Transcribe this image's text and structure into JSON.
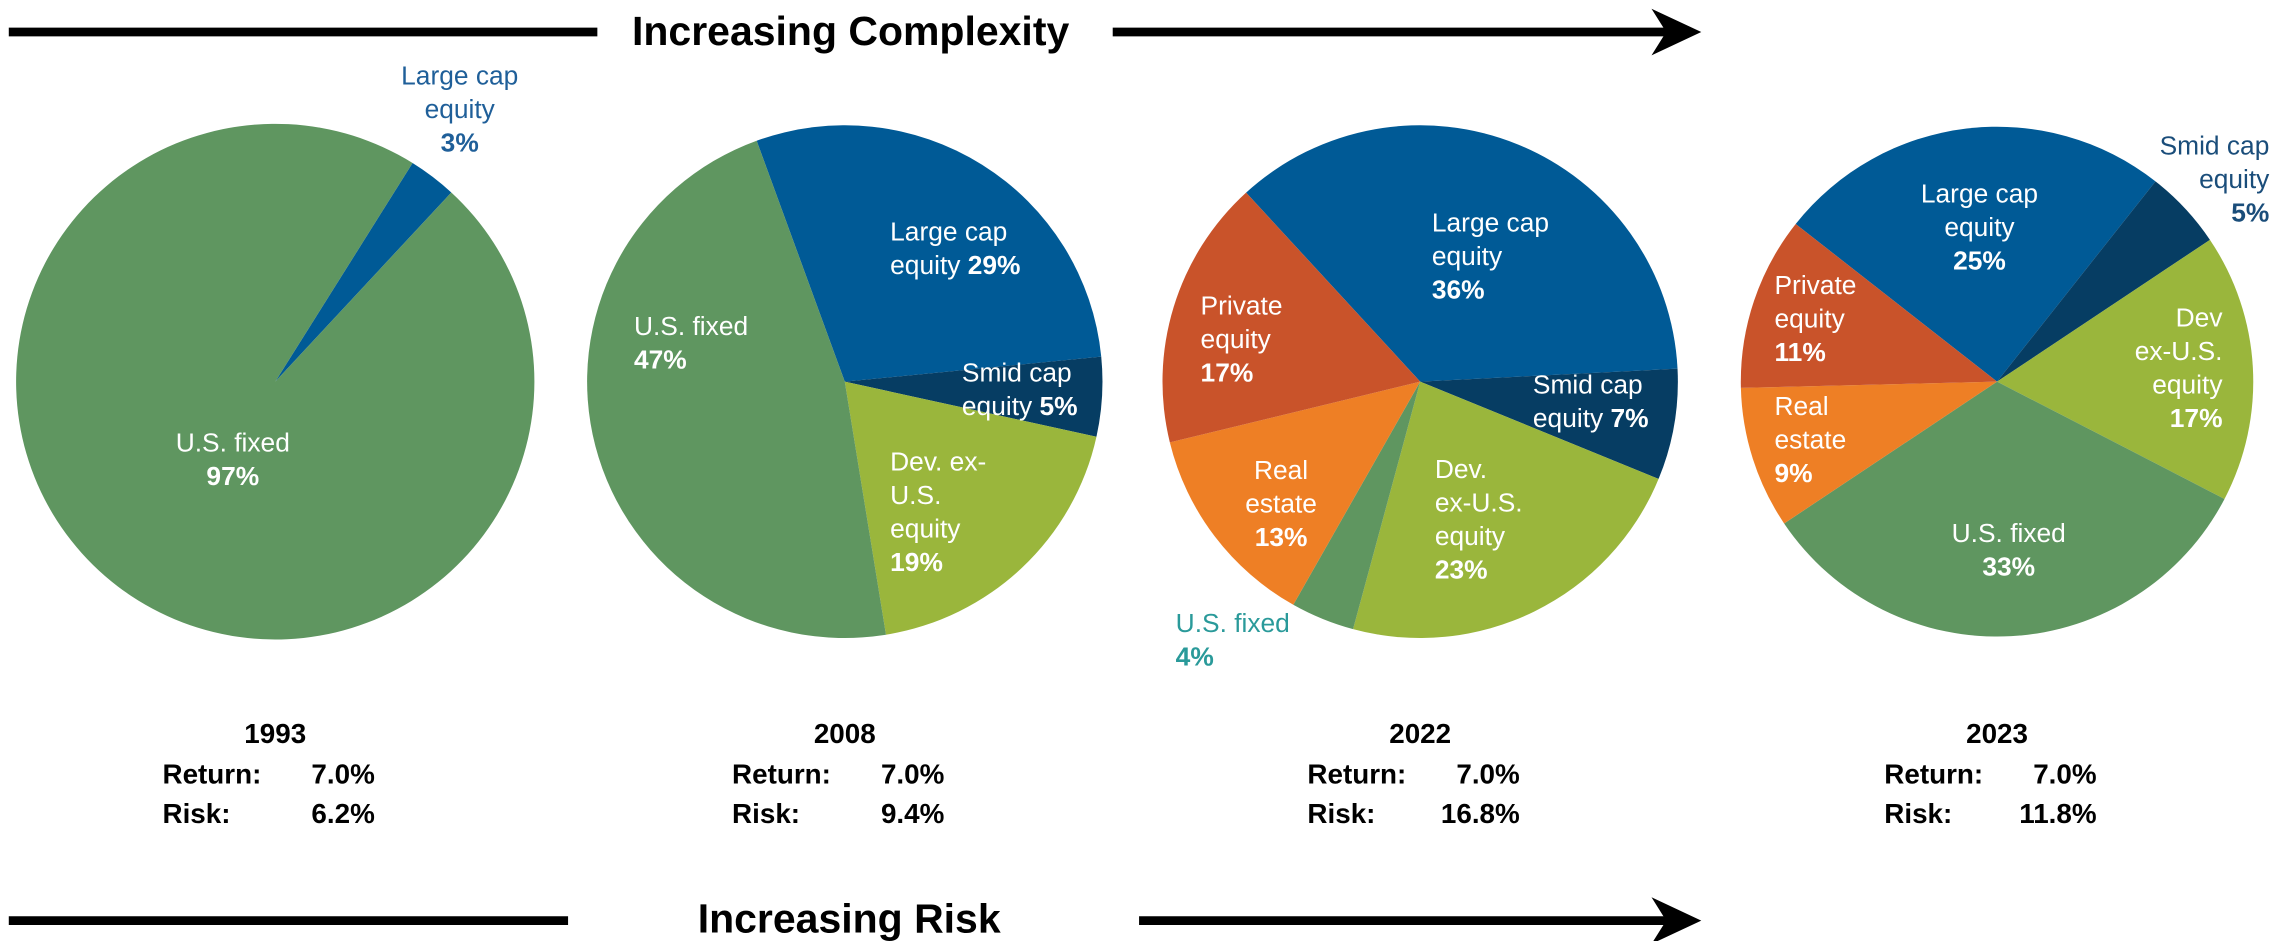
{
  "header": {
    "top": "Increasing Complexity",
    "bottom": "Increasing Risk"
  },
  "chart_data": [
    {
      "type": "pie",
      "title": "1993",
      "categories": [
        "Large cap equity",
        "U.S. fixed"
      ],
      "values": [
        3,
        97
      ],
      "value_labels": [
        "3%",
        "97%"
      ],
      "colors": [
        "#005a96",
        "#5f9660"
      ],
      "stats": {
        "names": [
          "Return:",
          "Risk:"
        ],
        "values": [
          7.0,
          6.2
        ],
        "value_labels": [
          "7.0%",
          "6.2%"
        ]
      }
    },
    {
      "type": "pie",
      "title": "2008",
      "categories": [
        "Large cap equity",
        "Smid cap equity",
        "Dev. ex-U.S. equity",
        "U.S. fixed"
      ],
      "values": [
        29,
        5,
        19,
        47
      ],
      "value_labels": [
        "29%",
        "5%",
        "19%",
        "47%"
      ],
      "colors": [
        "#005a96",
        "#063d63",
        "#9ab63c",
        "#5f9660"
      ],
      "stats": {
        "names": [
          "Return:",
          "Risk:"
        ],
        "values": [
          7.0,
          9.4
        ],
        "value_labels": [
          "7.0%",
          "9.4%"
        ]
      }
    },
    {
      "type": "pie",
      "title": "2022",
      "categories": [
        "Large cap equity",
        "Smid cap equity",
        "Dev. ex-U.S. equity",
        "U.S. fixed",
        "Real estate",
        "Private equity"
      ],
      "values": [
        36,
        7,
        23,
        4,
        13,
        17
      ],
      "value_labels": [
        "36%",
        "7%",
        "23%",
        "4%",
        "13%",
        "17%"
      ],
      "colors": [
        "#005a96",
        "#063d63",
        "#9ab63c",
        "#5f9660",
        "#ee7f25",
        "#c9532a"
      ],
      "stats": {
        "names": [
          "Return:",
          "Risk:"
        ],
        "values": [
          7.0,
          16.8
        ],
        "value_labels": [
          "7.0%",
          "16.8%"
        ]
      }
    },
    {
      "type": "pie",
      "title": "2023",
      "categories": [
        "Large cap equity",
        "Smid cap equity",
        "Dev ex-U.S. equity",
        "U.S. fixed",
        "Real estate",
        "Private equity"
      ],
      "values": [
        25,
        5,
        17,
        33,
        9,
        11
      ],
      "value_labels": [
        "25%",
        "5%",
        "17%",
        "33%",
        "9%",
        "11%"
      ],
      "colors": [
        "#005a96",
        "#063d63",
        "#9ab63c",
        "#5f9660",
        "#ee7f25",
        "#c9532a"
      ],
      "stats": {
        "names": [
          "Return:",
          "Risk:"
        ],
        "values": [
          7.0,
          11.8
        ],
        "value_labels": [
          "7.0%",
          "11.8%"
        ]
      }
    }
  ]
}
